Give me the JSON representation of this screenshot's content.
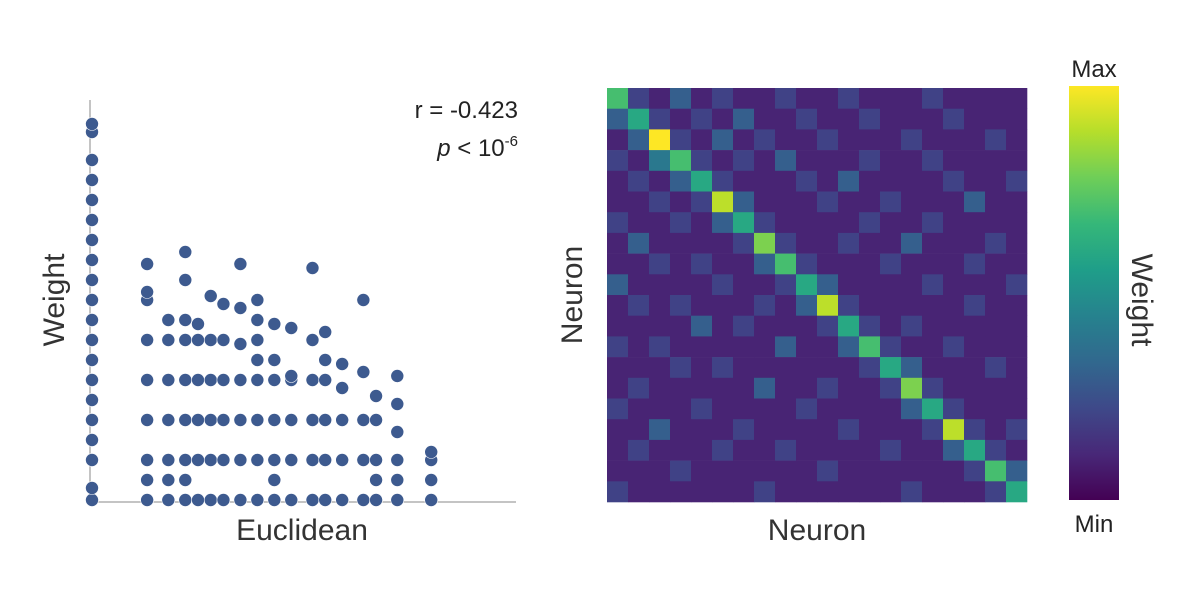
{
  "chart_data": [
    {
      "type": "scatter",
      "xlabel": "Euclidean",
      "ylabel": "Weight",
      "annotations": {
        "r": "r = -0.423",
        "p": "p",
        "p_rel": " < 10",
        "p_exp": "-6"
      },
      "color": "#3d5a8f",
      "xlim": [
        0,
        100
      ],
      "ylim": [
        0,
        100
      ],
      "series": [
        {
          "x": [
            0,
            0,
            0,
            0,
            0,
            0,
            0,
            0,
            0,
            0,
            0,
            0,
            0,
            0,
            0,
            0,
            0,
            0,
            0,
            0,
            13,
            13,
            13,
            13,
            13,
            13,
            13,
            13,
            13,
            18,
            18,
            18,
            18,
            18,
            18,
            18,
            22,
            22,
            22,
            22,
            22,
            22,
            22,
            22,
            22,
            25,
            25,
            25,
            25,
            25,
            25,
            28,
            28,
            28,
            28,
            28,
            28,
            31,
            31,
            31,
            31,
            31,
            31,
            35,
            35,
            35,
            35,
            35,
            35,
            35,
            39,
            39,
            39,
            39,
            39,
            39,
            39,
            39,
            43,
            43,
            43,
            43,
            43,
            43,
            43,
            47,
            47,
            47,
            47,
            47,
            47,
            52,
            52,
            52,
            52,
            52,
            52,
            55,
            55,
            55,
            55,
            55,
            55,
            59,
            59,
            59,
            59,
            59,
            64,
            64,
            64,
            64,
            64,
            67,
            67,
            67,
            67,
            67,
            72,
            72,
            72,
            72,
            72,
            72,
            80,
            80,
            80,
            80
          ],
          "y": [
            0,
            3,
            10,
            15,
            20,
            25,
            30,
            35,
            40,
            45,
            50,
            55,
            60,
            65,
            70,
            75,
            80,
            85,
            92,
            94,
            0,
            5,
            10,
            20,
            30,
            40,
            50,
            52,
            59,
            0,
            5,
            10,
            20,
            30,
            40,
            45,
            0,
            5,
            10,
            20,
            30,
            40,
            45,
            55,
            62,
            0,
            10,
            20,
            30,
            40,
            44,
            0,
            10,
            20,
            30,
            40,
            51,
            0,
            10,
            20,
            30,
            40,
            49,
            0,
            10,
            20,
            30,
            39,
            48,
            59,
            0,
            10,
            20,
            30,
            35,
            40,
            45,
            50,
            0,
            5,
            10,
            20,
            30,
            35,
            44,
            0,
            10,
            20,
            30,
            31,
            43,
            0,
            10,
            20,
            30,
            40,
            58,
            0,
            10,
            20,
            30,
            35,
            42,
            0,
            10,
            20,
            28,
            34,
            0,
            10,
            20,
            32,
            50,
            0,
            5,
            10,
            20,
            26,
            0,
            5,
            10,
            17,
            24,
            31,
            0,
            5,
            10,
            12
          ]
        }
      ]
    },
    {
      "type": "heatmap",
      "xlabel": "Neuron",
      "ylabel": "Neuron",
      "colormap": "viridis",
      "vlim": [
        0,
        1
      ],
      "colorbar_title": "Weight",
      "colorbar_max": "Max",
      "colorbar_min": "Min",
      "values": [
        [
          0.7,
          0.2,
          0.1,
          0.3,
          0.1,
          0.2,
          0.1,
          0.1,
          0.2,
          0.1,
          0.1,
          0.2,
          0.1,
          0.1,
          0.1,
          0.2,
          0.1,
          0.1,
          0.1,
          0.1
        ],
        [
          0.3,
          0.6,
          0.2,
          0.1,
          0.2,
          0.1,
          0.3,
          0.1,
          0.1,
          0.2,
          0.1,
          0.1,
          0.2,
          0.1,
          0.1,
          0.1,
          0.2,
          0.1,
          0.1,
          0.1
        ],
        [
          0.1,
          0.3,
          1,
          0.2,
          0.1,
          0.3,
          0.1,
          0.2,
          0.1,
          0.1,
          0.2,
          0.1,
          0.1,
          0.1,
          0.2,
          0.1,
          0.1,
          0.1,
          0.2,
          0.1
        ],
        [
          0.2,
          0.1,
          0.4,
          0.7,
          0.2,
          0.1,
          0.2,
          0.1,
          0.3,
          0.1,
          0.1,
          0.1,
          0.2,
          0.1,
          0.1,
          0.2,
          0.1,
          0.1,
          0.1,
          0.1
        ],
        [
          0.1,
          0.2,
          0.1,
          0.3,
          0.6,
          0.2,
          0.1,
          0.1,
          0.1,
          0.2,
          0.1,
          0.3,
          0.1,
          0.1,
          0.1,
          0.1,
          0.2,
          0.1,
          0.1,
          0.2
        ],
        [
          0.1,
          0.1,
          0.2,
          0.1,
          0.2,
          0.9,
          0.3,
          0.1,
          0.1,
          0.1,
          0.2,
          0.1,
          0.1,
          0.2,
          0.1,
          0.1,
          0.1,
          0.3,
          0.1,
          0.1
        ],
        [
          0.2,
          0.1,
          0.1,
          0.2,
          0.1,
          0.3,
          0.6,
          0.2,
          0.1,
          0.1,
          0.1,
          0.1,
          0.2,
          0.1,
          0.1,
          0.2,
          0.1,
          0.1,
          0.1,
          0.1
        ],
        [
          0.1,
          0.3,
          0.1,
          0.1,
          0.1,
          0.1,
          0.2,
          0.8,
          0.2,
          0.1,
          0.1,
          0.2,
          0.1,
          0.1,
          0.3,
          0.1,
          0.1,
          0.1,
          0.2,
          0.1
        ],
        [
          0.1,
          0.1,
          0.2,
          0.1,
          0.2,
          0.1,
          0.1,
          0.3,
          0.7,
          0.2,
          0.1,
          0.1,
          0.1,
          0.2,
          0.1,
          0.1,
          0.1,
          0.2,
          0.1,
          0.1
        ],
        [
          0.3,
          0.1,
          0.1,
          0.1,
          0.1,
          0.2,
          0.1,
          0.1,
          0.2,
          0.6,
          0.3,
          0.1,
          0.1,
          0.1,
          0.1,
          0.2,
          0.1,
          0.1,
          0.1,
          0.2
        ],
        [
          0.1,
          0.2,
          0.1,
          0.2,
          0.1,
          0.1,
          0.1,
          0.2,
          0.1,
          0.3,
          0.9,
          0.2,
          0.1,
          0.1,
          0.1,
          0.1,
          0.1,
          0.2,
          0.1,
          0.1
        ],
        [
          0.1,
          0.1,
          0.1,
          0.1,
          0.3,
          0.1,
          0.2,
          0.1,
          0.1,
          0.1,
          0.2,
          0.6,
          0.2,
          0.1,
          0.2,
          0.1,
          0.1,
          0.1,
          0.1,
          0.1
        ],
        [
          0.2,
          0.1,
          0.2,
          0.1,
          0.1,
          0.1,
          0.1,
          0.1,
          0.3,
          0.1,
          0.1,
          0.3,
          0.7,
          0.2,
          0.1,
          0.1,
          0.2,
          0.1,
          0.1,
          0.1
        ],
        [
          0.1,
          0.1,
          0.1,
          0.2,
          0.1,
          0.2,
          0.1,
          0.1,
          0.1,
          0.1,
          0.1,
          0.1,
          0.2,
          0.6,
          0.3,
          0.1,
          0.1,
          0.1,
          0.2,
          0.1
        ],
        [
          0.1,
          0.2,
          0.1,
          0.1,
          0.1,
          0.1,
          0.1,
          0.3,
          0.1,
          0.1,
          0.2,
          0.1,
          0.1,
          0.2,
          0.8,
          0.2,
          0.1,
          0.1,
          0.1,
          0.1
        ],
        [
          0.2,
          0.1,
          0.1,
          0.1,
          0.2,
          0.1,
          0.1,
          0.1,
          0.1,
          0.2,
          0.1,
          0.1,
          0.1,
          0.1,
          0.3,
          0.6,
          0.2,
          0.1,
          0.1,
          0.1
        ],
        [
          0.1,
          0.1,
          0.3,
          0.1,
          0.1,
          0.1,
          0.2,
          0.1,
          0.1,
          0.1,
          0.1,
          0.2,
          0.1,
          0.1,
          0.1,
          0.2,
          0.9,
          0.2,
          0.1,
          0.2
        ],
        [
          0.1,
          0.2,
          0.1,
          0.1,
          0.1,
          0.2,
          0.1,
          0.1,
          0.2,
          0.1,
          0.1,
          0.1,
          0.1,
          0.2,
          0.1,
          0.1,
          0.3,
          0.6,
          0.2,
          0.1
        ],
        [
          0.1,
          0.1,
          0.1,
          0.2,
          0.1,
          0.1,
          0.1,
          0.1,
          0.1,
          0.1,
          0.2,
          0.1,
          0.1,
          0.1,
          0.1,
          0.1,
          0.1,
          0.2,
          0.7,
          0.3
        ],
        [
          0.2,
          0.1,
          0.1,
          0.1,
          0.1,
          0.1,
          0.1,
          0.2,
          0.1,
          0.1,
          0.1,
          0.1,
          0.1,
          0.1,
          0.2,
          0.1,
          0.1,
          0.1,
          0.2,
          0.6
        ]
      ]
    }
  ]
}
